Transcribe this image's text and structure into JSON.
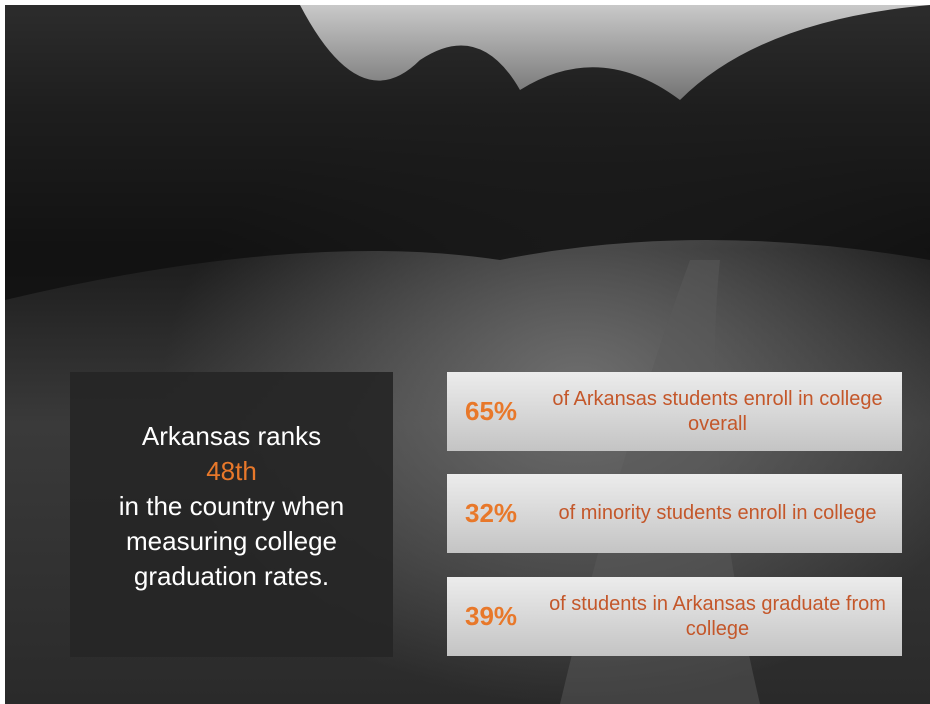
{
  "callout": {
    "line1": "Arkansas ranks",
    "highlight": "48th",
    "rest": "in the country when measuring college graduation rates."
  },
  "stats": [
    {
      "value": "65%",
      "text": "of Arkansas students enroll in college overall"
    },
    {
      "value": "32%",
      "text": "of minority students enroll in college"
    },
    {
      "value": "39%",
      "text": "of students in Arkansas graduate from college"
    }
  ]
}
